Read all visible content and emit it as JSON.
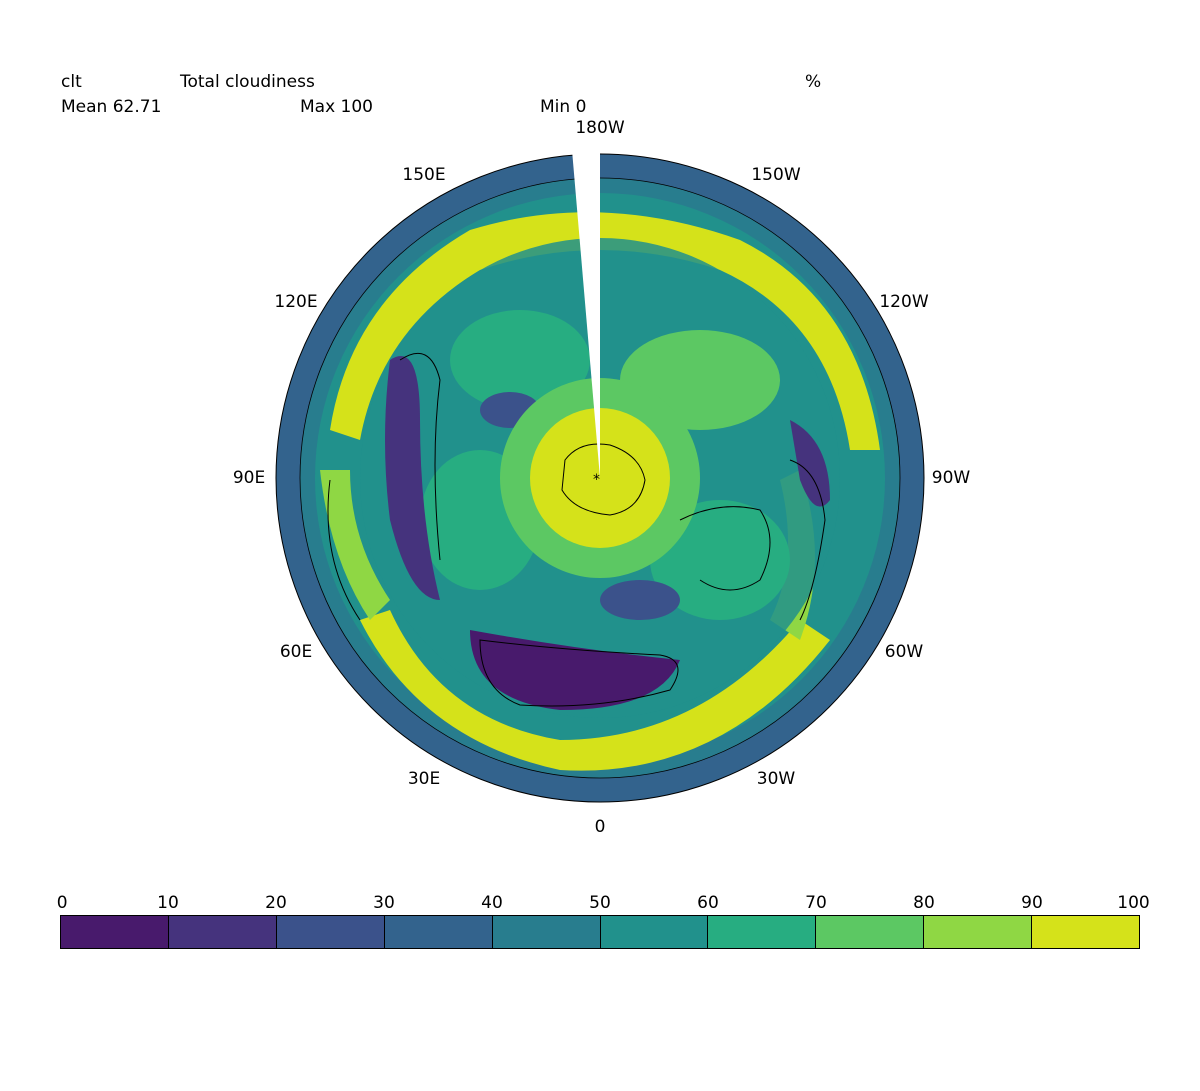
{
  "header": {
    "variable": "clt",
    "long_name": "Total cloudiness",
    "units": "%",
    "mean": "Mean 62.71",
    "max": "Max 100",
    "min": "Min 0"
  },
  "map": {
    "projection": "polar-stereographic-south",
    "longitude_labels": [
      "180W",
      "150W",
      "120W",
      "90W",
      "60W",
      "30W",
      "0",
      "30E",
      "60E",
      "90E",
      "120E",
      "150E"
    ],
    "fill": "viridis-contours-0-100"
  },
  "colorbar": {
    "ticks": [
      "0",
      "10",
      "20",
      "30",
      "40",
      "50",
      "60",
      "70",
      "80",
      "90",
      "100"
    ],
    "colors": [
      "#481a6c",
      "#45337d",
      "#3b528b",
      "#33638d",
      "#287d8e",
      "#21918c",
      "#27ad81",
      "#5cc863",
      "#8fd744",
      "#d5e21a"
    ]
  }
}
